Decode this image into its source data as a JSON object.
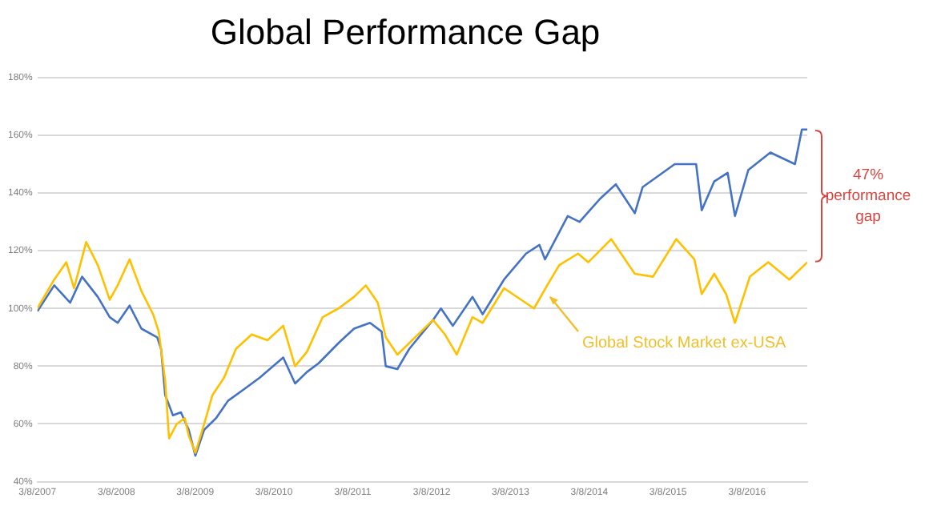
{
  "chart_data": {
    "type": "line",
    "title": "Global Performance Gap",
    "series": [
      {
        "color": "#ffc000",
        "x": [
          "2007-03-08",
          "2007-05-25",
          "2007-07-20",
          "2007-08-25",
          "2007-10-20",
          "2007-12-13",
          "2008-02-06",
          "2008-03-14",
          "2008-05-08",
          "2008-07-02",
          "2008-08-25",
          "2008-09-20",
          "2008-10-20",
          "2008-11-07",
          "2008-12-13",
          "2009-01-19",
          "2009-02-06",
          "2009-03-09",
          "2009-04-19",
          "2009-05-27",
          "2009-07-20",
          "2009-09-13",
          "2009-11-25",
          "2010-02-06",
          "2010-04-20",
          "2010-06-14",
          "2010-08-08",
          "2010-10-20",
          "2011-01-01",
          "2011-03-14",
          "2011-05-08",
          "2011-07-02",
          "2011-08-08",
          "2011-10-01",
          "2011-11-25",
          "2012-03-14",
          "2012-05-08",
          "2012-07-02",
          "2012-09-13",
          "2012-10-30",
          "2013-02-06",
          "2013-06-25",
          "2013-08-25",
          "2013-10-20",
          "2014-01-15",
          "2014-03-03",
          "2014-06-18",
          "2014-10-05",
          "2014-12-28",
          "2015-04-15",
          "2015-07-08",
          "2015-08-11",
          "2015-10-08",
          "2015-12-02",
          "2016-01-12",
          "2016-03-21",
          "2016-06-14",
          "2016-09-20",
          "2016-12-12"
        ],
        "values": [
          100,
          110,
          116,
          107,
          123,
          115,
          103,
          108,
          117,
          106,
          98,
          92,
          75,
          55,
          60,
          62,
          56,
          50,
          60,
          70,
          76,
          86,
          91,
          89,
          94,
          80,
          85,
          97,
          100,
          104,
          108,
          102,
          90,
          84,
          88,
          96,
          91,
          84,
          97,
          95,
          107,
          100,
          108,
          115,
          119,
          116,
          124,
          112,
          111,
          124,
          117,
          105,
          112,
          105,
          95,
          111,
          116,
          110,
          116
        ]
      },
      {
        "color": "#4472c4",
        "x": [
          "2007-03-08",
          "2007-05-25",
          "2007-08-07",
          "2007-10-01",
          "2007-12-13",
          "2008-02-06",
          "2008-03-14",
          "2008-05-08",
          "2008-07-02",
          "2008-09-13",
          "2008-10-01",
          "2008-10-20",
          "2008-11-25",
          "2009-01-01",
          "2009-02-06",
          "2009-03-09",
          "2009-04-19",
          "2009-06-13",
          "2009-08-07",
          "2009-10-20",
          "2010-01-01",
          "2010-04-20",
          "2010-06-14",
          "2010-08-08",
          "2010-10-01",
          "2011-01-01",
          "2011-03-14",
          "2011-05-27",
          "2011-07-20",
          "2011-08-08",
          "2011-10-01",
          "2011-11-25",
          "2012-03-14",
          "2012-04-20",
          "2012-06-14",
          "2012-09-13",
          "2012-10-30",
          "2013-02-06",
          "2013-05-19",
          "2013-07-20",
          "2013-08-15",
          "2013-11-28",
          "2014-01-22",
          "2014-04-27",
          "2014-07-09",
          "2014-10-05",
          "2014-11-10",
          "2015-04-08",
          "2015-07-16",
          "2015-08-11",
          "2015-10-08",
          "2015-12-09",
          "2016-01-12",
          "2016-03-14",
          "2016-06-24",
          "2016-10-16",
          "2016-11-17",
          "2016-12-12"
        ],
        "values": [
          99,
          108,
          102,
          111,
          104,
          97,
          95,
          101,
          93,
          90,
          86,
          70,
          63,
          64,
          58,
          49,
          58,
          62,
          68,
          72,
          76,
          83,
          74,
          78,
          81,
          88,
          93,
          95,
          92,
          80,
          79,
          86,
          96,
          100,
          94,
          104,
          98,
          110,
          119,
          122,
          117,
          132,
          130,
          138,
          143,
          133,
          142,
          150,
          150,
          134,
          144,
          147,
          132,
          148,
          154,
          150,
          162,
          162
        ]
      }
    ],
    "xlim": [
      "2007-03-08",
      "2016-12-12"
    ],
    "xticks": [
      {
        "value": "2007-03-08",
        "label": "3/8/2007"
      },
      {
        "value": "2008-03-08",
        "label": "3/8/2008"
      },
      {
        "value": "2009-03-08",
        "label": "3/8/2009"
      },
      {
        "value": "2010-03-08",
        "label": "3/8/2010"
      },
      {
        "value": "2011-03-08",
        "label": "3/8/2011"
      },
      {
        "value": "2012-03-08",
        "label": "3/8/2012"
      },
      {
        "value": "2013-03-08",
        "label": "3/8/2013"
      },
      {
        "value": "2014-03-08",
        "label": "3/8/2014"
      },
      {
        "value": "2015-03-08",
        "label": "3/8/2015"
      },
      {
        "value": "2016-03-08",
        "label": "3/8/2016"
      }
    ],
    "ylim": [
      40,
      180
    ],
    "yticks": [
      {
        "value": 40,
        "label": "40%"
      },
      {
        "value": 60,
        "label": "60%"
      },
      {
        "value": 80,
        "label": "80%"
      },
      {
        "value": 100,
        "label": "100%"
      },
      {
        "value": 120,
        "label": "120%"
      },
      {
        "value": 140,
        "label": "140%"
      },
      {
        "value": 160,
        "label": "160%"
      },
      {
        "value": 180,
        "label": "180%"
      }
    ],
    "grid": "y",
    "annotations": [
      "Global Stock Market ex-USA",
      "47% performance gap"
    ]
  }
}
